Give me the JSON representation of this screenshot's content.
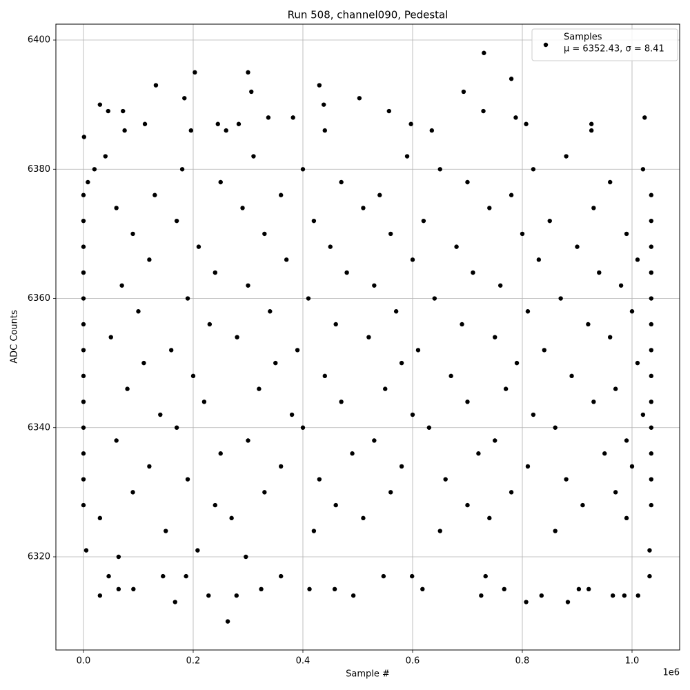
{
  "chart_data": {
    "type": "scatter",
    "title": "Run 508, channel090, Pedestal",
    "xlabel": "Sample #",
    "ylabel": "ADC Counts",
    "x_offset_label": "1e6",
    "legend_note": "μ = 6352.43, σ = 8.41",
    "legend_loc": "upper right",
    "grid": true,
    "xlim": [
      -50300,
      1086800
    ],
    "ylim": [
      6305.58,
      6402.46
    ],
    "xticks": [
      {
        "value": 0,
        "label": "0.0"
      },
      {
        "value": 200000,
        "label": "0.2"
      },
      {
        "value": 400000,
        "label": "0.4"
      },
      {
        "value": 600000,
        "label": "0.6"
      },
      {
        "value": 800000,
        "label": "0.8"
      },
      {
        "value": 1000000,
        "label": "1.0"
      }
    ],
    "yticks": [
      6320,
      6340,
      6360,
      6380,
      6400
    ],
    "x": [
      132000,
      184000,
      203000,
      300000,
      306000,
      430000,
      438000,
      503000,
      730000,
      780000,
      693000,
      30000,
      45000,
      72000,
      557000,
      1023000,
      788000,
      337000,
      382000,
      729000,
      263000,
      167000,
      30000,
      279000,
      228000,
      492000,
      725000,
      807000,
      883000,
      835000,
      1011000,
      965000,
      986000,
      46000,
      145000,
      187000,
      360000,
      547000,
      599000,
      733000,
      1032000,
      91000,
      324000,
      412000,
      458000,
      618000,
      767000,
      903000,
      921000,
      64000,
      296000,
      64000,
      1032000,
      208000,
      5000,
      1000,
      112000,
      245000,
      283000,
      597000,
      807000,
      926000,
      440000,
      635000,
      75000,
      196000,
      260000,
      926000,
      40000,
      310000,
      590000,
      880000,
      20000,
      180000,
      400000,
      650000,
      820000,
      1020000,
      8000,
      250000,
      470000,
      700000,
      960000,
      0,
      130000,
      360000,
      540000,
      780000,
      1035000,
      60000,
      290000,
      510000,
      740000,
      930000,
      0,
      170000,
      420000,
      620000,
      850000,
      1035000,
      90000,
      330000,
      560000,
      800000,
      990000,
      0,
      210000,
      450000,
      680000,
      900000,
      1035000,
      120000,
      370000,
      600000,
      830000,
      1010000,
      0,
      240000,
      480000,
      710000,
      940000,
      1035000,
      70000,
      300000,
      530000,
      760000,
      980000,
      0,
      190000,
      410000,
      640000,
      870000,
      1035000,
      100000,
      340000,
      570000,
      810000,
      1000000,
      0,
      230000,
      460000,
      690000,
      920000,
      1035000,
      50000,
      280000,
      520000,
      750000,
      960000,
      0,
      160000,
      390000,
      610000,
      840000,
      1035000,
      110000,
      350000,
      580000,
      790000,
      1010000,
      0,
      200000,
      440000,
      670000,
      890000,
      1035000,
      80000,
      320000,
      550000,
      770000,
      970000,
      0,
      220000,
      470000,
      700000,
      930000,
      1035000,
      140000,
      380000,
      600000,
      820000,
      1020000,
      0,
      170000,
      400000,
      630000,
      860000,
      1035000,
      60000,
      300000,
      530000,
      750000,
      990000,
      0,
      250000,
      490000,
      720000,
      950000,
      1035000,
      120000,
      360000,
      580000,
      810000,
      1000000,
      0,
      190000,
      430000,
      660000,
      880000,
      1035000,
      90000,
      330000,
      560000,
      780000,
      970000,
      0,
      240000,
      460000,
      700000,
      910000,
      1035000,
      30000,
      270000,
      510000,
      740000,
      990000,
      150000,
      420000,
      650000,
      860000
    ],
    "series": [
      {
        "name": "Samples",
        "color": "#000000",
        "values": [
          6393,
          6391,
          6395,
          6395,
          6392,
          6393,
          6390,
          6391,
          6398,
          6394,
          6392,
          6390,
          6389,
          6389,
          6389,
          6388,
          6388,
          6388,
          6388,
          6389,
          6310,
          6313,
          6314,
          6314,
          6314,
          6314,
          6314,
          6313,
          6313,
          6314,
          6314,
          6314,
          6314,
          6317,
          6317,
          6317,
          6317,
          6317,
          6317,
          6317,
          6317,
          6315,
          6315,
          6315,
          6315,
          6315,
          6315,
          6315,
          6315,
          6315,
          6320,
          6320,
          6321,
          6321,
          6321,
          6385,
          6387,
          6387,
          6387,
          6387,
          6387,
          6387,
          6386,
          6386,
          6386,
          6386,
          6386,
          6386,
          6382,
          6382,
          6382,
          6382,
          6380,
          6380,
          6380,
          6380,
          6380,
          6380,
          6378,
          6378,
          6378,
          6378,
          6378,
          6376,
          6376,
          6376,
          6376,
          6376,
          6376,
          6374,
          6374,
          6374,
          6374,
          6374,
          6372,
          6372,
          6372,
          6372,
          6372,
          6372,
          6370,
          6370,
          6370,
          6370,
          6370,
          6368,
          6368,
          6368,
          6368,
          6368,
          6368,
          6366,
          6366,
          6366,
          6366,
          6366,
          6364,
          6364,
          6364,
          6364,
          6364,
          6364,
          6362,
          6362,
          6362,
          6362,
          6362,
          6360,
          6360,
          6360,
          6360,
          6360,
          6360,
          6358,
          6358,
          6358,
          6358,
          6358,
          6356,
          6356,
          6356,
          6356,
          6356,
          6356,
          6354,
          6354,
          6354,
          6354,
          6354,
          6352,
          6352,
          6352,
          6352,
          6352,
          6352,
          6350,
          6350,
          6350,
          6350,
          6350,
          6348,
          6348,
          6348,
          6348,
          6348,
          6348,
          6346,
          6346,
          6346,
          6346,
          6346,
          6344,
          6344,
          6344,
          6344,
          6344,
          6344,
          6342,
          6342,
          6342,
          6342,
          6342,
          6340,
          6340,
          6340,
          6340,
          6340,
          6340,
          6338,
          6338,
          6338,
          6338,
          6338,
          6336,
          6336,
          6336,
          6336,
          6336,
          6336,
          6334,
          6334,
          6334,
          6334,
          6334,
          6332,
          6332,
          6332,
          6332,
          6332,
          6332,
          6330,
          6330,
          6330,
          6330,
          6330,
          6328,
          6328,
          6328,
          6328,
          6328,
          6328,
          6326,
          6326,
          6326,
          6326,
          6326,
          6324,
          6324,
          6324,
          6324
        ]
      }
    ]
  }
}
